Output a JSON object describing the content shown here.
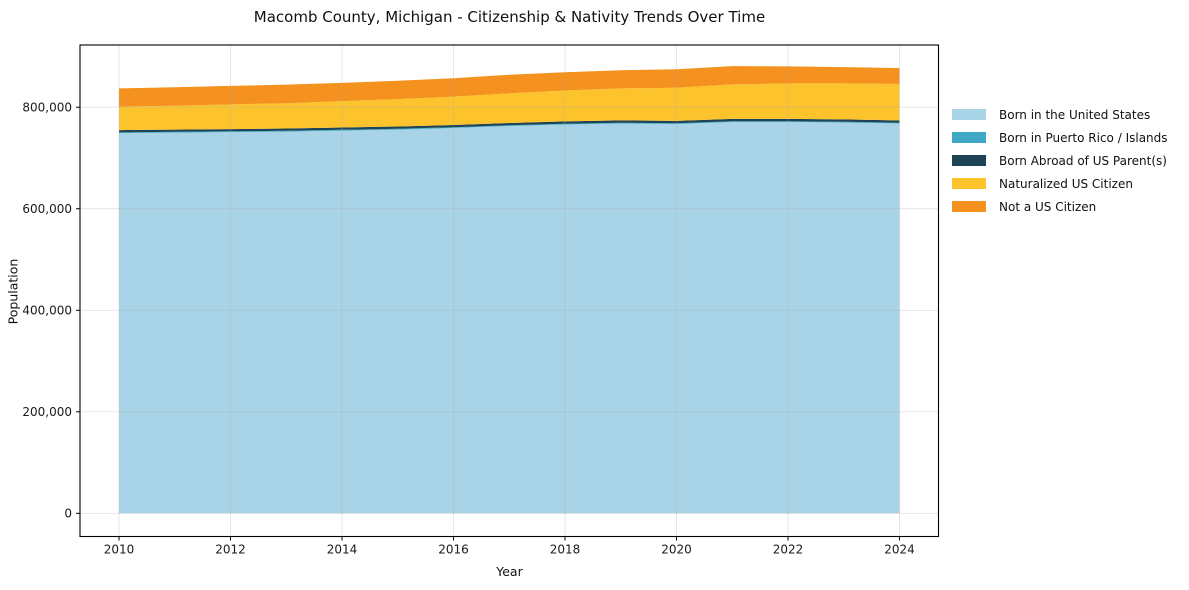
{
  "chart_data": {
    "type": "area",
    "stacked": true,
    "title": "Macomb County, Michigan - Citizenship & Nativity Trends Over Time",
    "xlabel": "Year",
    "ylabel": "Population",
    "grid": true,
    "legend_position": "right",
    "x": [
      2010,
      2011,
      2012,
      2013,
      2014,
      2015,
      2016,
      2017,
      2018,
      2019,
      2020,
      2021,
      2022,
      2023,
      2024
    ],
    "series": [
      {
        "name": "Born in the United States",
        "color": "#a9d3e6",
        "values": [
          749000,
          750000,
          751000,
          752000,
          754000,
          756000,
          759000,
          763000,
          766000,
          768000,
          767000,
          771000,
          771000,
          770000,
          768000
        ]
      },
      {
        "name": "Born in Puerto Rico / Islands",
        "color": "#3fa8c4",
        "values": [
          1500,
          1500,
          1500,
          1500,
          1500,
          1500,
          1500,
          1500,
          1500,
          1500,
          1500,
          1500,
          1500,
          1500,
          1500
        ]
      },
      {
        "name": "Born Abroad of US Parent(s)",
        "color": "#1e4456",
        "values": [
          4500,
          4500,
          4500,
          4500,
          4500,
          4500,
          4500,
          4500,
          4500,
          4500,
          4500,
          4500,
          4500,
          4500,
          4500
        ]
      },
      {
        "name": "Naturalized US Citizen",
        "color": "#fcc32d",
        "values": [
          46000,
          47000,
          48500,
          50000,
          52000,
          54000,
          56000,
          58500,
          61000,
          63000,
          65500,
          68000,
          70000,
          71000,
          72000
        ]
      },
      {
        "name": "Not a US Citizen",
        "color": "#f5911e",
        "values": [
          36000,
          36500,
          36500,
          36500,
          36000,
          36000,
          36000,
          36500,
          36000,
          36000,
          36500,
          36000,
          33500,
          32000,
          31000
        ]
      }
    ],
    "xlim": [
      2009.3,
      2024.7
    ],
    "ylim": [
      -45700,
      922600
    ],
    "xticks": {
      "values": [
        2010,
        2012,
        2014,
        2016,
        2018,
        2020,
        2022,
        2024
      ],
      "labels": [
        "2010",
        "2012",
        "2014",
        "2016",
        "2018",
        "2020",
        "2022",
        "2024"
      ]
    },
    "yticks": {
      "values": [
        0,
        200000,
        400000,
        600000,
        800000
      ],
      "labels": [
        "0",
        "200,000",
        "400,000",
        "600,000",
        "800,000"
      ]
    }
  },
  "style": {
    "grid_color": "#b0b0b0",
    "grid_opacity": 0.35,
    "frame_color": "#000000",
    "tick_label_color": "#1a1a1a",
    "background": "#ffffff"
  }
}
